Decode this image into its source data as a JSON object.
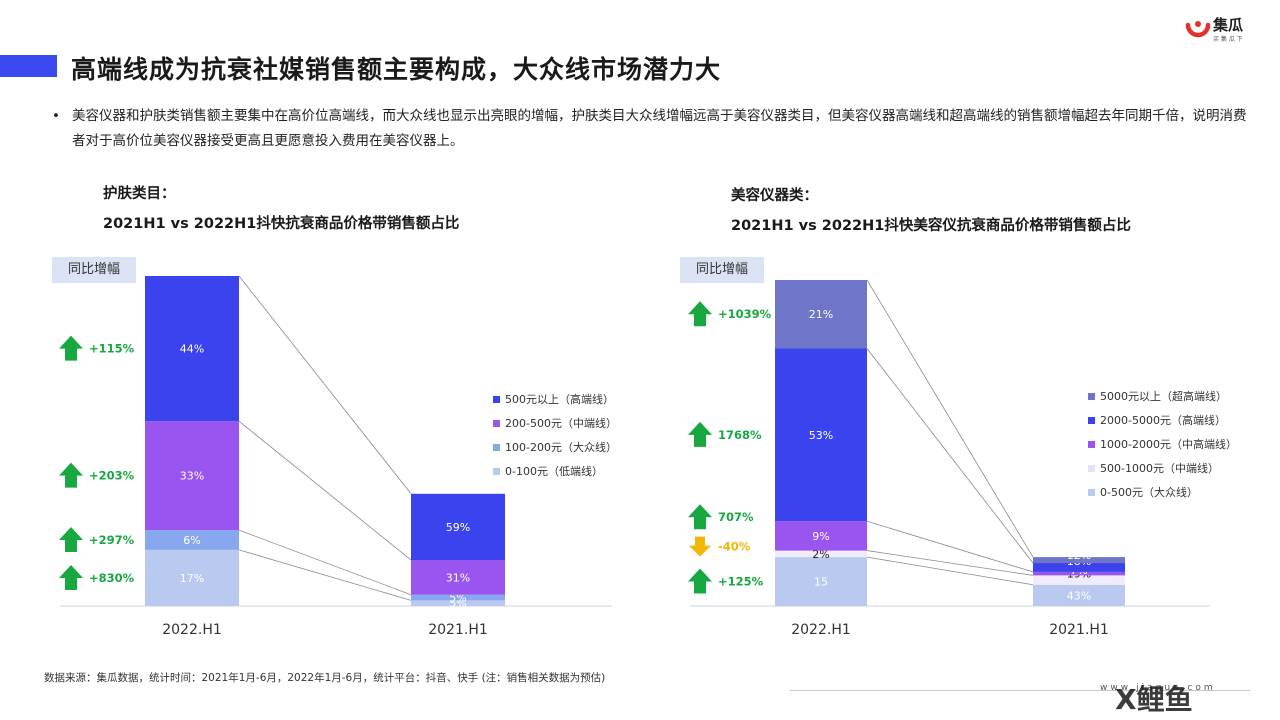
{
  "header": {
    "title": "高端线成为抗衰社媒销售额主要构成，大众线市场潜力大",
    "logo_name": "集瓜",
    "logo_sub": "买 集 瓜 下"
  },
  "bullet": "美容仪器和护肤类销售额主要集中在高价位高端线，而大众线也显示出亮眼的增幅，护肤类目大众线增幅远高于美容仪器类目，但美容仪器高端线和超高端线的销售额增幅超去年同期千倍，说明消费者对于高价位美容仪器接受更高且更愿意投入费用在美容仪器上。",
  "yoy_label": "同比增幅",
  "source": "数据来源：集瓜数据，统计时间：2021年1月-6月，2022年1月-6月，统计平台：抖音、快手 (注：销售相关数据为预估)",
  "footer": {
    "url": "www.jiagua.com",
    "brand": "X鲤鱼"
  },
  "colors": {
    "ultra_high": "#6f75c8",
    "high": "#3a43ee",
    "mid_high": "#9a55f0",
    "mid": "#f0ecfb",
    "mass": "#b9c9f0",
    "up": "#18a840",
    "down": "#f2b705",
    "accent": "#3b49f0"
  },
  "chart_data": [
    {
      "type": "bar",
      "stacked": true,
      "percent": true,
      "title_line1": "护肤类目：",
      "title_line2": "2021H1 vs 2022H1抖快抗衰商品价格带销售额占比",
      "categories": [
        "2022.H1",
        "2021.H1"
      ],
      "series": [
        {
          "name": "0-100元（低端线）",
          "color": "#b9c9f0",
          "values": [
            17,
            5
          ],
          "labels": [
            "17%",
            "5%"
          ]
        },
        {
          "name": "100-200元（大众线）",
          "color": "#87a8ee",
          "values": [
            6,
            5
          ],
          "labels": [
            "6%",
            "5%"
          ]
        },
        {
          "name": "200-500元（中端线）",
          "color": "#9a55f0",
          "values": [
            33,
            31
          ],
          "labels": [
            "33%",
            "31%"
          ]
        },
        {
          "name": "500元以上（高端线）",
          "color": "#3a43ee",
          "values": [
            44,
            59
          ],
          "labels": [
            "44%",
            "59%"
          ]
        }
      ],
      "total_ratio": [
        1.0,
        0.34
      ],
      "growth": [
        {
          "series_index": 0,
          "value": "+830%",
          "direction": "up"
        },
        {
          "series_index": 1,
          "value": "+297%",
          "direction": "up"
        },
        {
          "series_index": 2,
          "value": "+203%",
          "direction": "up"
        },
        {
          "series_index": 3,
          "value": "+115%",
          "direction": "up"
        }
      ]
    },
    {
      "type": "bar",
      "stacked": true,
      "percent": true,
      "title_line1": "美容仪器类：",
      "title_line2": "2021H1 vs 2022H1抖快美容仪抗衰商品价格带销售额占比",
      "categories": [
        "2022.H1",
        "2021.H1"
      ],
      "series": [
        {
          "name": "0-500元（大众线）",
          "color": "#b9c9f0",
          "values": [
            15,
            43
          ],
          "labels": [
            "15",
            "43%"
          ]
        },
        {
          "name": "500-1000元（中端线）",
          "color": "#f0ecfb",
          "values": [
            2,
            19
          ],
          "labels": [
            "2%",
            "19%"
          ]
        },
        {
          "name": "1000-2000元（中高端线）",
          "color": "#9a55f0",
          "values": [
            9,
            7
          ],
          "labels": [
            "9%",
            "7%"
          ]
        },
        {
          "name": "2000-5000元（高端线）",
          "color": "#3a43ee",
          "values": [
            53,
            18
          ],
          "labels": [
            "53%",
            "18%"
          ]
        },
        {
          "name": "5000元以上（超高端线）",
          "color": "#6f75c8",
          "values": [
            21,
            12
          ],
          "labels": [
            "21%",
            "12%"
          ]
        }
      ],
      "total_ratio": [
        1.0,
        0.15
      ],
      "growth": [
        {
          "series_index": 0,
          "value": "+125%",
          "direction": "up"
        },
        {
          "series_index": 1,
          "value": "-40%",
          "direction": "down"
        },
        {
          "series_index": 2,
          "value": "707%",
          "direction": "up"
        },
        {
          "series_index": 3,
          "value": "1768%",
          "direction": "up"
        },
        {
          "series_index": 4,
          "value": "+1039%",
          "direction": "up"
        }
      ]
    }
  ]
}
